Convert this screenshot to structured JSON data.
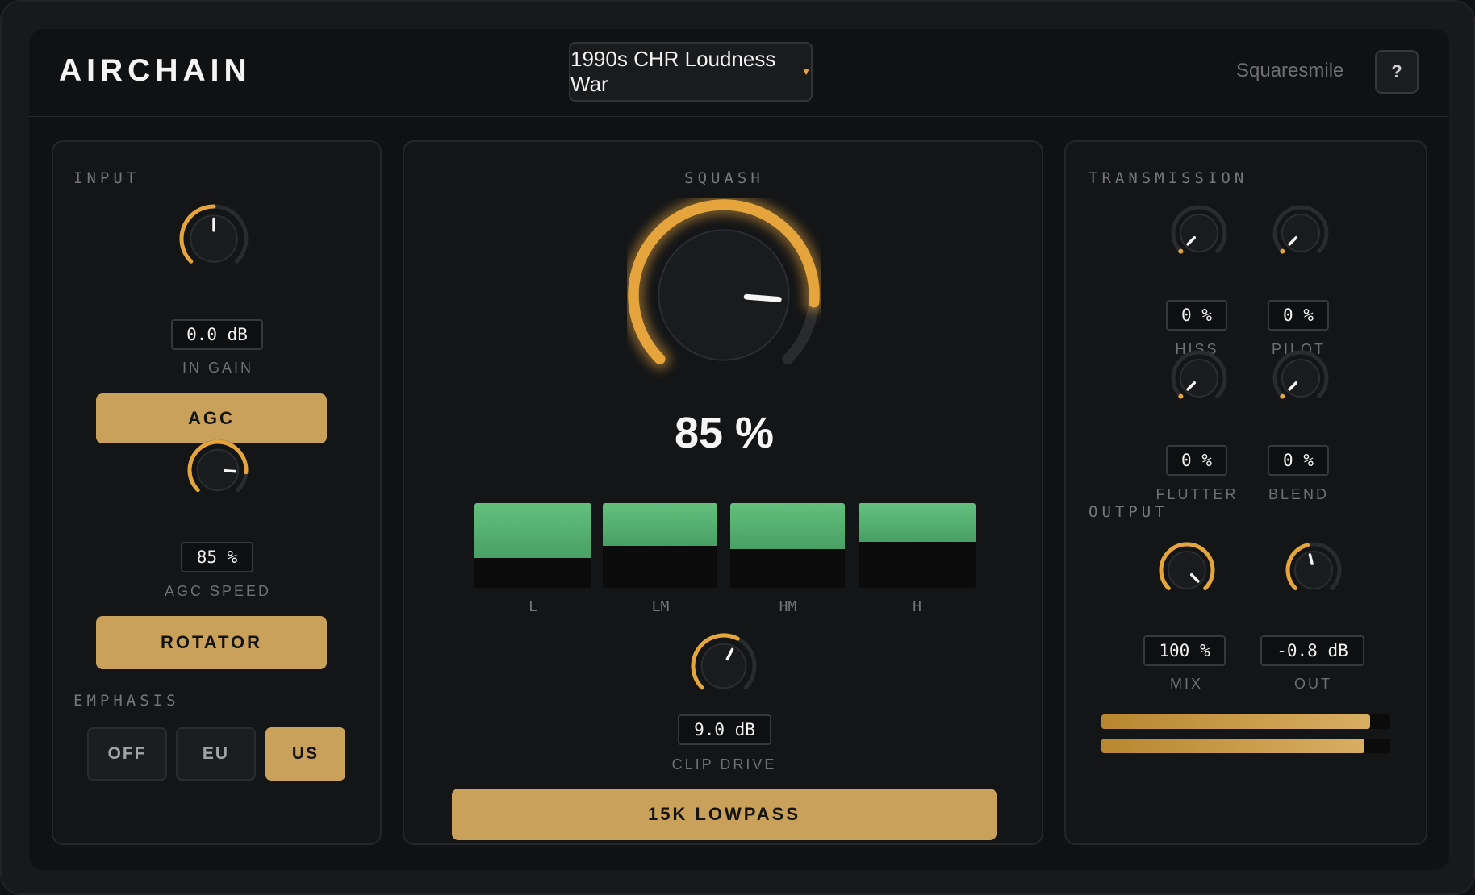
{
  "header": {
    "logo": "AIRCHAIN",
    "preset": "1990s CHR Loudness War",
    "brand": "Squaresmile",
    "help_label": "?"
  },
  "input": {
    "title": "INPUT",
    "in_gain": {
      "value": "0.0 dB",
      "label": "IN GAIN",
      "level": 0.5
    },
    "agc_label": "AGC",
    "agc_speed": {
      "value": "85 %",
      "label": "AGC SPEED",
      "level": 0.85
    },
    "rotator_label": "ROTATOR",
    "emphasis_title": "EMPHASIS",
    "emphasis_options": [
      "OFF",
      "EU",
      "US"
    ],
    "emphasis_selected": "US"
  },
  "squash": {
    "title": "SQUASH",
    "value": "85 %",
    "level": 0.85,
    "bands": [
      {
        "label": "L",
        "level": 0.65
      },
      {
        "label": "LM",
        "level": 0.5
      },
      {
        "label": "HM",
        "level": 0.54
      },
      {
        "label": "H",
        "level": 0.46
      }
    ],
    "clip_drive": {
      "value": "9.0 dB",
      "label": "CLIP DRIVE",
      "level": 0.6
    },
    "lowpass_label": "15K LOWPASS"
  },
  "transmission": {
    "title": "TRANSMISSION",
    "knobs": [
      {
        "label": "HISS",
        "value": "0 %",
        "level": 0
      },
      {
        "label": "PILOT",
        "value": "0 %",
        "level": 0
      },
      {
        "label": "FLUTTER",
        "value": "0 %",
        "level": 0
      },
      {
        "label": "BLEND",
        "value": "0 %",
        "level": 0
      }
    ],
    "output_title": "OUTPUT",
    "mix": {
      "label": "MIX",
      "value": "100 %",
      "level": 1.0
    },
    "out": {
      "label": "OUT",
      "value": "-0.8 dB",
      "level": 0.45
    },
    "meters": [
      0.93,
      0.91
    ]
  },
  "colors": {
    "accent": "#e5a53c",
    "button": "#c9a15a",
    "band_green": "#5cb876"
  }
}
